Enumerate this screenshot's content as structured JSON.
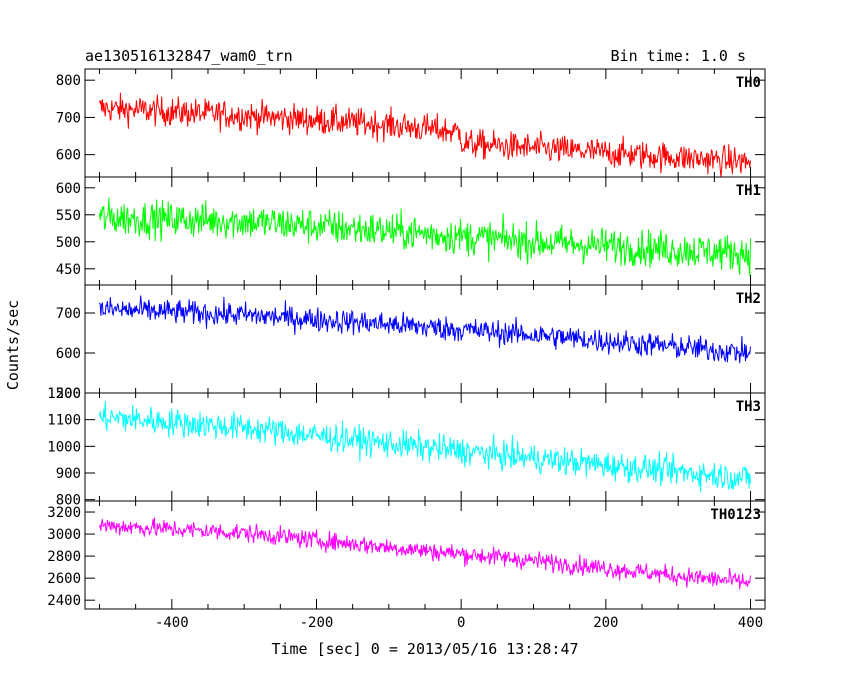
{
  "header": {
    "left_title": "ae130516132847_wam0_trn",
    "right_title": "Bin time: 1.0 s"
  },
  "axes": {
    "xlabel": "Time [sec] 0 = 2013/05/16 13:28:47",
    "ylabel": "Counts/sec"
  },
  "chart_data": {
    "type": "line",
    "xlim": [
      -520,
      420
    ],
    "x_ticks": [
      -400,
      -200,
      0,
      200,
      400
    ],
    "x_range": [
      -500,
      400
    ],
    "bin_time_s": 1.0,
    "grid": false,
    "panels": [
      {
        "label": "TH0",
        "color": "#ff0000",
        "ylim": [
          540,
          830
        ],
        "y_ticks": [
          600,
          700,
          800
        ],
        "trend": [
          [
            -500,
            725
          ],
          [
            -300,
            705
          ],
          [
            -100,
            680
          ],
          [
            0,
            660
          ],
          [
            0,
            630
          ],
          [
            200,
            605
          ],
          [
            400,
            580
          ]
        ],
        "noise": 28
      },
      {
        "label": "TH1",
        "color": "#00ff00",
        "ylim": [
          420,
          620
        ],
        "y_ticks": [
          450,
          500,
          550,
          600
        ],
        "trend": [
          [
            -500,
            545
          ],
          [
            -300,
            538
          ],
          [
            -100,
            520
          ],
          [
            100,
            500
          ],
          [
            400,
            478
          ]
        ],
        "noise": 24
      },
      {
        "label": "TH2",
        "color": "#0000ff",
        "ylim": [
          500,
          770
        ],
        "y_ticks": [
          500,
          600,
          700
        ],
        "trend": [
          [
            -500,
            710
          ],
          [
            -300,
            695
          ],
          [
            -100,
            672
          ],
          [
            100,
            645
          ],
          [
            300,
            615
          ],
          [
            400,
            600
          ]
        ],
        "noise": 22
      },
      {
        "label": "TH3",
        "color": "#00ffff",
        "ylim": [
          795,
          1200
        ],
        "y_ticks": [
          800,
          900,
          1000,
          1100,
          1200
        ],
        "trend": [
          [
            -500,
            1110
          ],
          [
            -300,
            1070
          ],
          [
            -100,
            1010
          ],
          [
            100,
            955
          ],
          [
            300,
            905
          ],
          [
            400,
            880
          ]
        ],
        "noise": 38
      },
      {
        "label": "TH0123",
        "color": "#ff00ff",
        "ylim": [
          2320,
          3300
        ],
        "y_ticks": [
          2400,
          2600,
          2800,
          3000,
          3200
        ],
        "trend": [
          [
            -500,
            3080
          ],
          [
            -300,
            3010
          ],
          [
            -100,
            2880
          ],
          [
            100,
            2760
          ],
          [
            300,
            2620
          ],
          [
            400,
            2560
          ]
        ],
        "noise": 60
      }
    ]
  }
}
